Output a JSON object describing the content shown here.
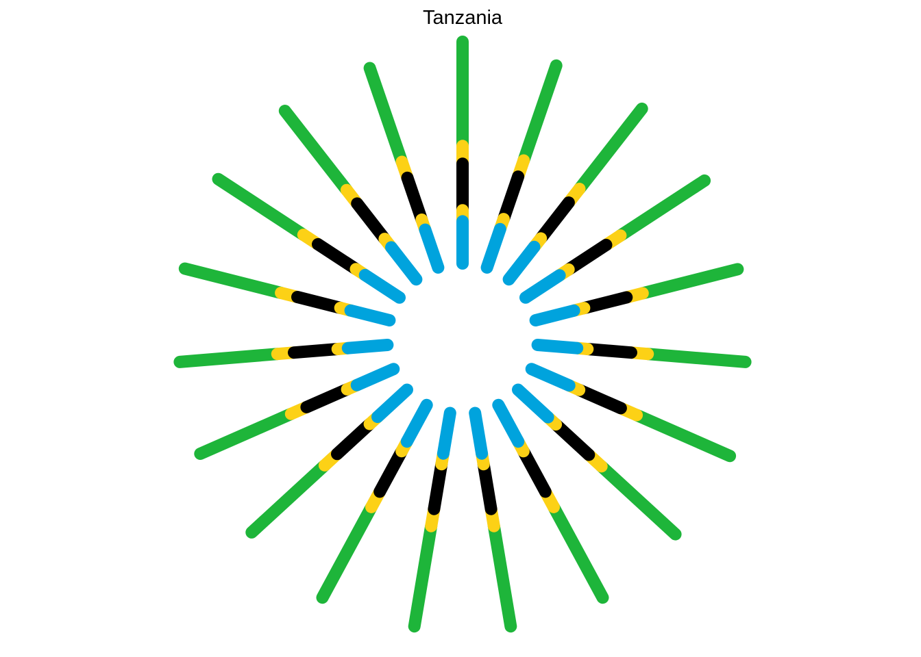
{
  "chart_data": {
    "type": "radial-segments",
    "title": "Tanzania",
    "xlabel": "",
    "ylabel": "",
    "grid": false,
    "legend": "none",
    "ray_count": 19,
    "ray_angles_deg": [
      0,
      18.9,
      37.9,
      56.8,
      75.8,
      94.7,
      113.7,
      132.6,
      151.6,
      170.5,
      189.5,
      208.4,
      227.4,
      246.3,
      265.3,
      284.2,
      303.2,
      322.1,
      341.1
    ],
    "ray_lengths": [
      0.81,
      0.78,
      0.79,
      0.78,
      0.76,
      0.76,
      0.79,
      0.78,
      0.8,
      0.79,
      0.79,
      0.8,
      0.77,
      0.77,
      0.76,
      0.77,
      0.79,
      0.78,
      0.77
    ],
    "segments": [
      {
        "color": "#00A3DD",
        "from": 0.0,
        "to": 0.19
      },
      {
        "color": "#FCD116",
        "from": 0.19,
        "to": 0.24
      },
      {
        "color": "#000000",
        "from": 0.24,
        "to": 0.45
      },
      {
        "color": "#FCD116",
        "from": 0.45,
        "to": 0.53
      },
      {
        "color": "#1EB53A",
        "from": 0.53,
        "to": 1.0
      }
    ],
    "colors": {
      "blue": "#00A3DD",
      "yellow": "#FCD116",
      "black": "#000000",
      "green": "#1EB53A"
    }
  }
}
